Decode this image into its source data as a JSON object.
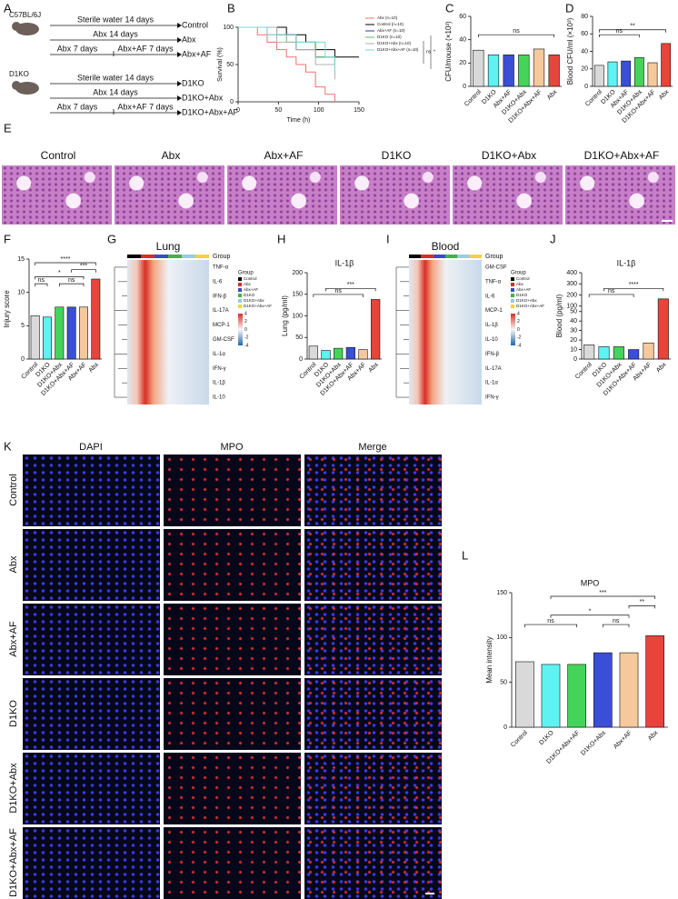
{
  "panel_labels": [
    "A",
    "B",
    "C",
    "D",
    "E",
    "F",
    "G",
    "H",
    "I",
    "J",
    "K",
    "L"
  ],
  "schematic": {
    "strains": [
      "C57BL/6J",
      "D1KO"
    ],
    "rows": [
      {
        "treatment": [
          "Sterile water 14 days"
        ],
        "group": "Control"
      },
      {
        "treatment": [
          "Abx 14 days"
        ],
        "group": "Abx"
      },
      {
        "treatment": [
          "Abx 7 days",
          "Abx+AF 7 days"
        ],
        "group": "Abx+AF"
      },
      {
        "treatment": [
          "Sterile water 14 days"
        ],
        "group": "D1KO"
      },
      {
        "treatment": [
          "Abx 14 days"
        ],
        "group": "D1KO+Abx"
      },
      {
        "treatment": [
          "Abx 7 days",
          "Abx+AF 7 days"
        ],
        "group": "D1KO+Abx+AF"
      }
    ]
  },
  "histology": {
    "labels": [
      "Control",
      "Abx",
      "Abx+AF",
      "D1KO",
      "D1KO+Abx",
      "D1KO+Abx+AF"
    ]
  },
  "heatmaps": [
    {
      "title": "Lung",
      "legend_title": "Group",
      "rows": [
        "TNF-α",
        "IL-6",
        "IFN-β",
        "IL-17A",
        "MCP-1",
        "GM-CSF",
        "IL-1α",
        "IFN-γ",
        "IL-1β",
        "IL-10"
      ],
      "groups": [
        "Control",
        "Abx",
        "Abx+AF",
        "D1KO",
        "D1KO+Abx",
        "D1KO+Abx+AF"
      ],
      "group_colors": [
        "#000000",
        "#d7301f",
        "#3b4cc0",
        "#3cb44b",
        "#9ec9e2",
        "#f2d43c"
      ],
      "scale_ticks": [
        4,
        2,
        0,
        -2,
        -4
      ]
    },
    {
      "title": "Blood",
      "legend_title": "Group",
      "rows": [
        "GM-CSF",
        "TNF-α",
        "IL-6",
        "MCP-1",
        "IL-1β",
        "IL-10",
        "IFN-β",
        "IL-17A",
        "IL-1α",
        "IFN-γ"
      ],
      "groups": [
        "Control",
        "Abx",
        "Abx+AF",
        "D1KO",
        "D1KO+Abx",
        "D1KO+Abx+AF"
      ],
      "group_colors": [
        "#000000",
        "#d7301f",
        "#3b4cc0",
        "#3cb44b",
        "#9ec9e2",
        "#f2d43c"
      ],
      "scale_ticks": [
        4,
        2,
        0,
        -2,
        -4
      ]
    }
  ],
  "microscopy": {
    "columns": [
      "DAPI",
      "MPO",
      "Merge"
    ],
    "rows": [
      "Control",
      "Abx",
      "Abx+AF",
      "D1KO",
      "D1KO+Abx",
      "D1KO+Abx+AF"
    ]
  },
  "chart_data": [
    {
      "type": "survival",
      "xlabel": "Time (h)",
      "ylabel": "Survival (%)",
      "xlim": [
        0,
        150
      ],
      "xticks": [
        0,
        50,
        100,
        150
      ],
      "ylim": [
        0,
        100
      ],
      "yticks": [
        0,
        50,
        100
      ],
      "annotations": [
        "ns",
        "*"
      ],
      "series": [
        {
          "name": "Abx (n=10)",
          "color": "#f07070",
          "x": [
            0,
            24,
            36,
            48,
            60,
            72,
            84,
            96,
            108,
            120
          ],
          "values": [
            100,
            90,
            80,
            70,
            60,
            50,
            40,
            20,
            10,
            0
          ]
        },
        {
          "name": "Control (n=10)",
          "color": "#000000",
          "x": [
            0,
            60,
            84,
            96,
            120,
            150
          ],
          "values": [
            100,
            90,
            80,
            70,
            60,
            60
          ]
        },
        {
          "name": "Abx+AF (n=10)",
          "color": "#2d3a8c",
          "x": [
            0,
            48,
            72,
            96,
            120
          ],
          "values": [
            100,
            90,
            70,
            60,
            50
          ]
        },
        {
          "name": "D1KO (n=10)",
          "color": "#5cc25c",
          "x": [
            0,
            36,
            60,
            96,
            120
          ],
          "values": [
            100,
            90,
            80,
            60,
            50
          ]
        },
        {
          "name": "D1KO+Abx (n=10)",
          "color": "#b0b0b0",
          "x": [
            0,
            48,
            72,
            96,
            120
          ],
          "values": [
            100,
            80,
            70,
            50,
            30
          ]
        },
        {
          "name": "D1KO+Abx+AF (n=10)",
          "color": "#7fd6d6",
          "x": [
            0,
            36,
            72,
            108,
            120
          ],
          "values": [
            100,
            90,
            80,
            60,
            40
          ]
        }
      ]
    },
    {
      "type": "bar",
      "ylabel": "CFU/mouse (×10³)",
      "categories": [
        "Control",
        "D1KO",
        "Abx+AF",
        "D1KO+Abx",
        "D1KO+Abx+AF",
        "Abx"
      ],
      "values": [
        31,
        27,
        27,
        27,
        32,
        27
      ],
      "colors": [
        "#d9d9d9",
        "#5ef2f2",
        "#3a4fd6",
        "#45d45a",
        "#f5c99b",
        "#e8443a"
      ],
      "ylim": [
        0,
        60
      ],
      "yticks": [
        0,
        20,
        40,
        60
      ],
      "annotations": [
        "ns"
      ]
    },
    {
      "type": "bar",
      "ylabel": "Blood CFU/ml (×10³)",
      "categories": [
        "Control",
        "D1KO",
        "Abx+AF",
        "D1KO+Abx",
        "D1KO+Abx+AF",
        "Abx"
      ],
      "values": [
        24,
        28,
        29,
        33,
        27,
        49
      ],
      "colors": [
        "#d9d9d9",
        "#5ef2f2",
        "#3a4fd6",
        "#45d45a",
        "#f5c99b",
        "#e8443a"
      ],
      "ylim": [
        0,
        80
      ],
      "yticks": [
        0,
        20,
        40,
        60,
        80
      ],
      "annotations": [
        "ns",
        "**"
      ]
    },
    {
      "type": "bar",
      "ylabel": "Injury score",
      "categories": [
        "Control",
        "D1KO",
        "D1KO+Abx",
        "D1KO+Abx+AF",
        "Abx+AF",
        "Abx"
      ],
      "values": [
        6.5,
        6.3,
        7.8,
        7.8,
        7.8,
        12
      ],
      "colors": [
        "#d9d9d9",
        "#5ef2f2",
        "#45d45a",
        "#3a4fd6",
        "#f5c99b",
        "#e8443a"
      ],
      "ylim": [
        0,
        15
      ],
      "yticks": [
        0,
        5,
        10,
        15
      ],
      "annotations": [
        "ns",
        "ns",
        "*",
        "***",
        "****"
      ]
    },
    {
      "type": "bar",
      "title": "IL-1β",
      "ylabel": "Lung (pg/ml)",
      "categories": [
        "Control",
        "D1KO",
        "D1KO+Abx",
        "D1KO+Abx+AF",
        "Abx+AF",
        "Abx"
      ],
      "values": [
        30,
        20,
        25,
        27,
        22,
        138
      ],
      "colors": [
        "#d9d9d9",
        "#5ef2f2",
        "#45d45a",
        "#3a4fd6",
        "#f5c99b",
        "#e8443a"
      ],
      "ylim": [
        0,
        200
      ],
      "yticks": [
        0,
        50,
        100,
        150,
        200
      ],
      "annotations": [
        "ns",
        "***"
      ]
    },
    {
      "type": "bar",
      "title": "IL-1β",
      "ylabel": "Blood (pg/ml)",
      "categories": [
        "Control",
        "D1KO",
        "D1KO+Abx",
        "D1KO+Abx+AF",
        "Abx+AF",
        "Abx"
      ],
      "values": [
        15,
        13,
        13,
        10,
        17,
        165
      ],
      "colors": [
        "#d9d9d9",
        "#5ef2f2",
        "#45d45a",
        "#3a4fd6",
        "#f5c99b",
        "#e8443a"
      ],
      "ylim": [
        0,
        400
      ],
      "ybreak": [
        50,
        100
      ],
      "yticks": [
        0,
        10,
        20,
        30,
        40,
        50,
        100,
        200,
        300,
        400
      ],
      "annotations": [
        "ns",
        "****"
      ]
    },
    {
      "type": "bar",
      "title": "MPO",
      "ylabel": "Mean intensity",
      "categories": [
        "Control",
        "D1KO",
        "D1KO+Abx+AF",
        "D1KO+Abx",
        "Abx+AF",
        "Abx"
      ],
      "values": [
        73,
        70,
        70,
        83,
        83,
        102
      ],
      "colors": [
        "#d9d9d9",
        "#5ef2f2",
        "#45d45a",
        "#3a4fd6",
        "#f5c99b",
        "#e8443a"
      ],
      "ylim": [
        0,
        150
      ],
      "yticks": [
        0,
        50,
        100,
        150
      ],
      "annotations": [
        "ns",
        "ns",
        "*",
        "**",
        "***"
      ]
    }
  ]
}
